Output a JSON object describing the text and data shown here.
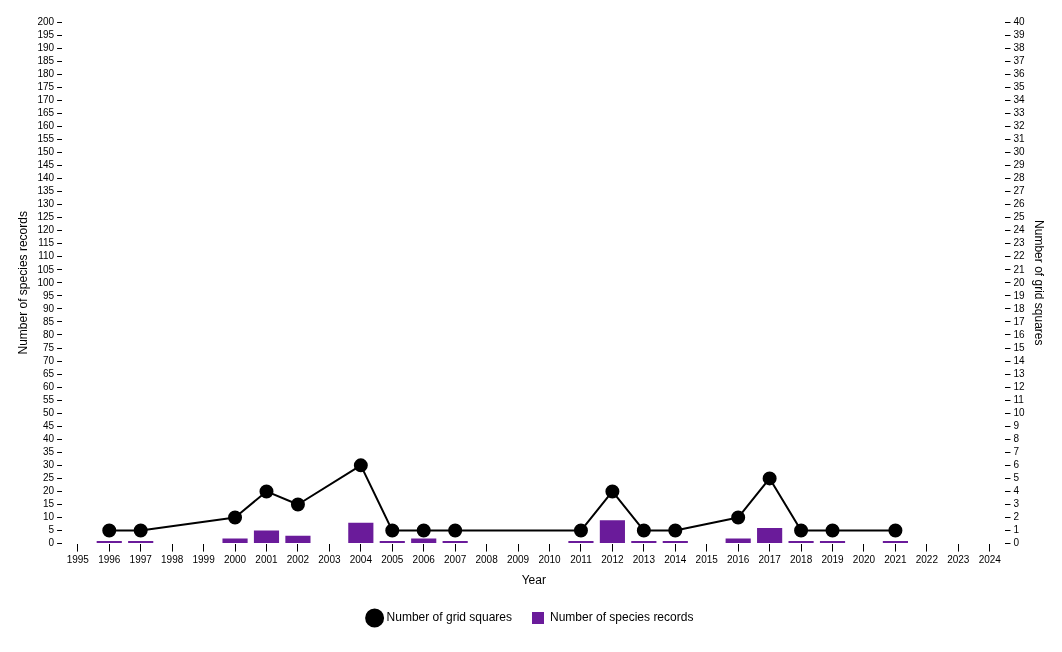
{
  "chart_data": {
    "type": "bar",
    "xlabel": "Year",
    "ylabel": "Number of species records",
    "y2label": "Number of grid squares",
    "x": [
      1996,
      1997,
      2000,
      2001,
      2002,
      2004,
      2005,
      2006,
      2007,
      2011,
      2012,
      2013,
      2014,
      2016,
      2017,
      2018,
      2019,
      2021
    ],
    "series": [
      {
        "name": "Number of grid squares",
        "type": "line",
        "axis": "y2",
        "color": "#000000",
        "marker": "circle",
        "values": [
          1,
          1,
          2,
          4,
          3,
          6,
          1,
          1,
          1,
          1,
          4,
          1,
          1,
          2,
          5,
          1,
          1,
          1
        ]
      },
      {
        "name": "Number of species records",
        "color": "#6a1b9a",
        "values": [
          1,
          1,
          2,
          5,
          3,
          8,
          1,
          2,
          1,
          1,
          9,
          1,
          1,
          2,
          6,
          1,
          1,
          1
        ]
      }
    ],
    "xlim": [
      1995,
      2024
    ],
    "xticks": [
      1995,
      1996,
      1997,
      1998,
      1999,
      2000,
      2001,
      2002,
      2003,
      2004,
      2005,
      2006,
      2007,
      2008,
      2009,
      2010,
      2011,
      2012,
      2013,
      2014,
      2015,
      2016,
      2017,
      2018,
      2019,
      2020,
      2021,
      2022,
      2023,
      2024
    ],
    "ylim": [
      0,
      200
    ],
    "yticks": [
      0,
      5,
      10,
      15,
      20,
      25,
      30,
      35,
      40,
      45,
      50,
      55,
      60,
      65,
      70,
      75,
      80,
      85,
      90,
      95,
      100,
      105,
      110,
      115,
      120,
      125,
      130,
      135,
      140,
      145,
      150,
      155,
      160,
      165,
      170,
      175,
      180,
      185,
      190,
      195,
      200
    ],
    "y2lim": [
      0,
      40
    ],
    "y2ticks": [
      0,
      1,
      2,
      3,
      4,
      5,
      6,
      7,
      8,
      9,
      10,
      11,
      12,
      13,
      14,
      15,
      16,
      17,
      18,
      19,
      20,
      21,
      22,
      23,
      24,
      25,
      26,
      27,
      28,
      29,
      30,
      31,
      32,
      33,
      34,
      35,
      36,
      37,
      38,
      39,
      40
    ],
    "grid": false,
    "legend": "bottom"
  }
}
